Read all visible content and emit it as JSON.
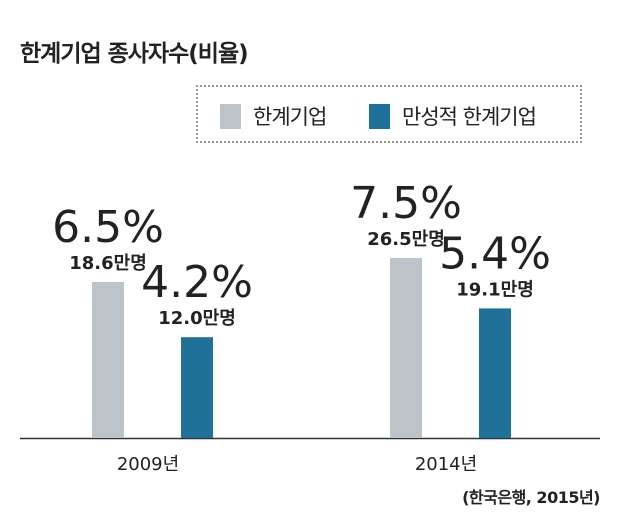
{
  "colors": {
    "series_0": "#bcc3c9",
    "series_1": "#20719a"
  },
  "chart_data": {
    "type": "bar",
    "title": "한계기업 종사자수(비율)",
    "categories": [
      "2009년",
      "2014년"
    ],
    "series": [
      {
        "name": "한계기업",
        "values": [
          6.5,
          7.5
        ],
        "value_labels": [
          "6.5%",
          "7.5%"
        ],
        "count_labels": [
          "18.6만명",
          "26.5만명"
        ]
      },
      {
        "name": "만성적 한계기업",
        "values": [
          4.2,
          5.4
        ],
        "value_labels": [
          "4.2%",
          "5.4%"
        ],
        "count_labels": [
          "12.0만명",
          "19.1만명"
        ]
      }
    ],
    "ylim": [
      0,
      10
    ],
    "legend": "top-right",
    "grid": false,
    "source": "(한국은행, 2015년)"
  }
}
